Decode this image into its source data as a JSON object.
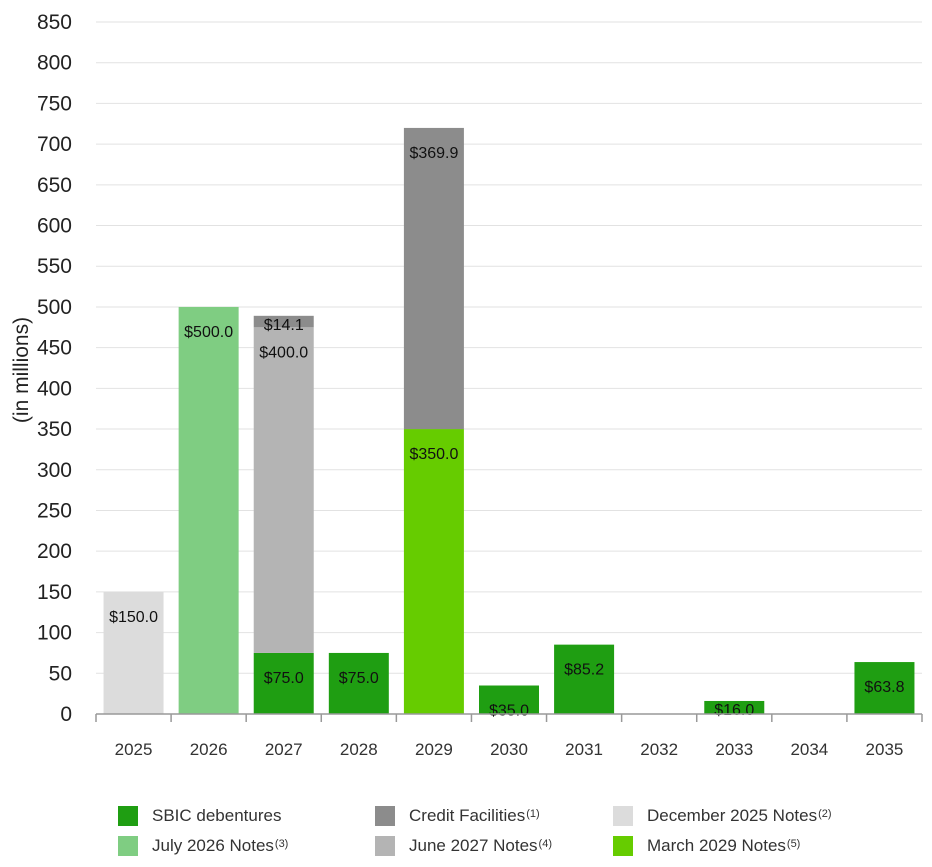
{
  "chart_data": {
    "type": "bar",
    "stacked": true,
    "title": "",
    "xlabel": "",
    "ylabel": "(in millions)",
    "ylim": [
      0,
      850
    ],
    "yticks": [
      0,
      50,
      100,
      150,
      200,
      250,
      300,
      350,
      400,
      450,
      500,
      550,
      600,
      650,
      700,
      750,
      800,
      850
    ],
    "grid": true,
    "legend_position": "bottom",
    "categories": [
      "2025",
      "2026",
      "2027",
      "2028",
      "2029",
      "2030",
      "2031",
      "2032",
      "2033",
      "2034",
      "2035"
    ],
    "series": [
      {
        "key": "sbic",
        "name": "SBIC debentures",
        "sup": "",
        "color": "#1f9e12",
        "values": [
          0,
          0,
          75.0,
          75.0,
          0,
          35.0,
          85.2,
          0,
          16.0,
          0,
          63.8
        ],
        "labels": [
          "",
          "",
          "$75.0",
          "$75.0",
          "",
          "$35.0",
          "$85.2",
          "",
          "$16.0",
          "",
          "$63.8"
        ]
      },
      {
        "key": "dec2025",
        "name": "December 2025 Notes",
        "sup": "(2)",
        "color": "#dcdcdc",
        "values": [
          150.0,
          0,
          0,
          0,
          0,
          0,
          0,
          0,
          0,
          0,
          0
        ],
        "labels": [
          "$150.0",
          "",
          "",
          "",
          "",
          "",
          "",
          "",
          "",
          "",
          ""
        ]
      },
      {
        "key": "jul2026",
        "name": "July 2026 Notes",
        "sup": "(3)",
        "color": "#7fcd82",
        "values": [
          0,
          500.0,
          0,
          0,
          0,
          0,
          0,
          0,
          0,
          0,
          0
        ],
        "labels": [
          "",
          "$500.0",
          "",
          "",
          "",
          "",
          "",
          "",
          "",
          "",
          ""
        ]
      },
      {
        "key": "jun2027",
        "name": "June 2027 Notes",
        "sup": "(4)",
        "color": "#b4b4b4",
        "values": [
          0,
          0,
          400.0,
          0,
          0,
          0,
          0,
          0,
          0,
          0,
          0
        ],
        "labels": [
          "",
          "",
          "$400.0",
          "",
          "",
          "",
          "",
          "",
          "",
          "",
          ""
        ]
      },
      {
        "key": "mar2029",
        "name": "March 2029 Notes",
        "sup": "(5)",
        "color": "#66cc00",
        "values": [
          0,
          0,
          0,
          0,
          350.0,
          0,
          0,
          0,
          0,
          0,
          0
        ],
        "labels": [
          "",
          "",
          "",
          "",
          "$350.0",
          "",
          "",
          "",
          "",
          "",
          ""
        ]
      },
      {
        "key": "credit",
        "name": "Credit Facilities",
        "sup": "(1)",
        "color": "#8c8c8c",
        "values": [
          0,
          0,
          14.1,
          0,
          369.9,
          0,
          0,
          0,
          0,
          0,
          0
        ],
        "labels": [
          "",
          "",
          "$14.1",
          "",
          "$369.9",
          "",
          "",
          "",
          "",
          "",
          ""
        ]
      }
    ],
    "legend_order": [
      "sbic",
      "credit",
      "dec2025",
      "jul2026",
      "jun2027",
      "mar2029"
    ]
  }
}
